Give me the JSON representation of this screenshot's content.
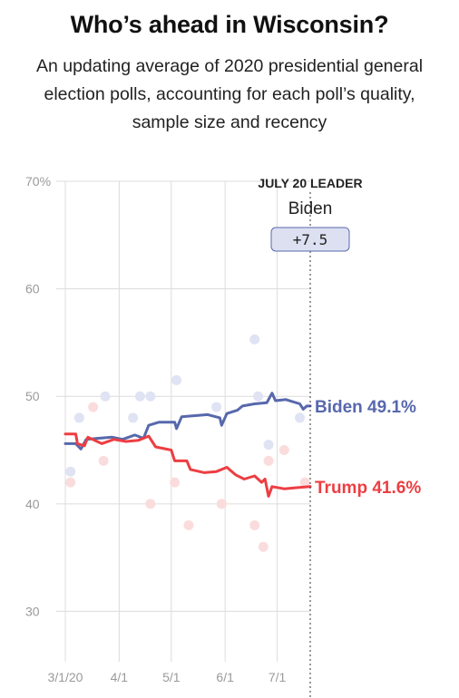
{
  "title": "Who’s ahead in Wisconsin?",
  "subtitle": "An updating average of 2020 presidential general election polls, accounting for each poll’s quality, sample size and recency",
  "leader": {
    "label": "JULY 20 LEADER",
    "name": "Biden",
    "margin": "+7.5"
  },
  "colors": {
    "biden": "#5768ac",
    "trump": "#ed3e42",
    "biden_poll": "#dfe3f3",
    "trump_poll": "#fbdcdd",
    "grid": "#dcdcdc",
    "tick": "#9a9a9a"
  },
  "chart_data": {
    "type": "line",
    "title": "Who’s ahead in Wisconsin?",
    "xlabel": "",
    "ylabel": "",
    "ylim": [
      27,
      70
    ],
    "y_ticks": [
      {
        "value": 70,
        "label": "70%"
      },
      {
        "value": 60,
        "label": "60"
      },
      {
        "value": 50,
        "label": "50"
      },
      {
        "value": 40,
        "label": "40"
      },
      {
        "value": 30,
        "label": "30"
      }
    ],
    "xlim": [
      "2020-03-01",
      "2020-07-20"
    ],
    "x_ticks": [
      {
        "value": "2020-03-01",
        "label": "3/1/20"
      },
      {
        "value": "2020-04-01",
        "label": "4/1"
      },
      {
        "value": "2020-05-01",
        "label": "5/1"
      },
      {
        "value": "2020-06-01",
        "label": "6/1"
      },
      {
        "value": "2020-07-01",
        "label": "7/1"
      }
    ],
    "grid": true,
    "series": [
      {
        "name": "Biden",
        "end_label": "Biden 49.1%",
        "color": "#5768ac",
        "points": [
          [
            "2020-03-01",
            45.6
          ],
          [
            "2020-03-07",
            45.6
          ],
          [
            "2020-03-10",
            45.1
          ],
          [
            "2020-03-13",
            46.0
          ],
          [
            "2020-03-20",
            46.1
          ],
          [
            "2020-03-28",
            46.2
          ],
          [
            "2020-04-03",
            46.0
          ],
          [
            "2020-04-10",
            46.4
          ],
          [
            "2020-04-15",
            46.1
          ],
          [
            "2020-04-18",
            47.3
          ],
          [
            "2020-04-24",
            47.6
          ],
          [
            "2020-05-03",
            47.6
          ],
          [
            "2020-05-04",
            47.0
          ],
          [
            "2020-05-07",
            48.1
          ],
          [
            "2020-05-14",
            48.2
          ],
          [
            "2020-05-22",
            48.3
          ],
          [
            "2020-05-29",
            48.0
          ],
          [
            "2020-05-30",
            47.3
          ],
          [
            "2020-06-02",
            48.4
          ],
          [
            "2020-06-08",
            48.7
          ],
          [
            "2020-06-11",
            49.1
          ],
          [
            "2020-06-18",
            49.3
          ],
          [
            "2020-06-25",
            49.4
          ],
          [
            "2020-06-28",
            50.3
          ],
          [
            "2020-06-30",
            49.6
          ],
          [
            "2020-07-06",
            49.7
          ],
          [
            "2020-07-14",
            49.3
          ],
          [
            "2020-07-16",
            48.8
          ],
          [
            "2020-07-18",
            49.1
          ],
          [
            "2020-07-20",
            49.1
          ]
        ]
      },
      {
        "name": "Trump",
        "end_label": "Trump 41.6%",
        "color": "#ed3e42",
        "points": [
          [
            "2020-03-01",
            46.5
          ],
          [
            "2020-03-07",
            46.5
          ],
          [
            "2020-03-08",
            45.6
          ],
          [
            "2020-03-12",
            45.4
          ],
          [
            "2020-03-14",
            46.2
          ],
          [
            "2020-03-22",
            45.6
          ],
          [
            "2020-03-29",
            46.0
          ],
          [
            "2020-04-05",
            45.8
          ],
          [
            "2020-04-12",
            45.9
          ],
          [
            "2020-04-18",
            46.3
          ],
          [
            "2020-04-22",
            45.3
          ],
          [
            "2020-05-01",
            45.0
          ],
          [
            "2020-05-03",
            44.0
          ],
          [
            "2020-05-10",
            44.0
          ],
          [
            "2020-05-12",
            43.2
          ],
          [
            "2020-05-20",
            42.9
          ],
          [
            "2020-05-27",
            43.0
          ],
          [
            "2020-06-02",
            43.4
          ],
          [
            "2020-06-07",
            42.7
          ],
          [
            "2020-06-12",
            42.3
          ],
          [
            "2020-06-18",
            42.6
          ],
          [
            "2020-06-22",
            42.0
          ],
          [
            "2020-06-24",
            42.3
          ],
          [
            "2020-06-26",
            40.7
          ],
          [
            "2020-06-28",
            41.6
          ],
          [
            "2020-07-05",
            41.4
          ],
          [
            "2020-07-12",
            41.5
          ],
          [
            "2020-07-20",
            41.6
          ]
        ]
      }
    ],
    "polls": [
      {
        "candidate": "Biden",
        "date": "2020-03-04",
        "value": 43.0
      },
      {
        "candidate": "Biden",
        "date": "2020-03-09",
        "value": 48.0
      },
      {
        "candidate": "Biden",
        "date": "2020-03-24",
        "value": 50.0
      },
      {
        "candidate": "Biden",
        "date": "2020-04-09",
        "value": 48.0
      },
      {
        "candidate": "Biden",
        "date": "2020-04-13",
        "value": 50.0
      },
      {
        "candidate": "Biden",
        "date": "2020-04-19",
        "value": 50.0
      },
      {
        "candidate": "Biden",
        "date": "2020-05-04",
        "value": 51.5
      },
      {
        "candidate": "Biden",
        "date": "2020-05-27",
        "value": 49.0
      },
      {
        "candidate": "Biden",
        "date": "2020-06-18",
        "value": 55.3
      },
      {
        "candidate": "Biden",
        "date": "2020-06-20",
        "value": 50.0
      },
      {
        "candidate": "Biden",
        "date": "2020-06-26",
        "value": 45.5
      },
      {
        "candidate": "Biden",
        "date": "2020-07-14",
        "value": 48.0
      },
      {
        "candidate": "Trump",
        "date": "2020-03-04",
        "value": 42.0
      },
      {
        "candidate": "Trump",
        "date": "2020-03-17",
        "value": 49.0
      },
      {
        "candidate": "Trump",
        "date": "2020-03-23",
        "value": 44.0
      },
      {
        "candidate": "Trump",
        "date": "2020-04-19",
        "value": 40.0
      },
      {
        "candidate": "Trump",
        "date": "2020-05-03",
        "value": 42.0
      },
      {
        "candidate": "Trump",
        "date": "2020-05-11",
        "value": 38.0
      },
      {
        "candidate": "Trump",
        "date": "2020-05-30",
        "value": 40.0
      },
      {
        "candidate": "Trump",
        "date": "2020-06-18",
        "value": 38.0
      },
      {
        "candidate": "Trump",
        "date": "2020-06-23",
        "value": 36.0
      },
      {
        "candidate": "Trump",
        "date": "2020-06-26",
        "value": 44.0
      },
      {
        "candidate": "Trump",
        "date": "2020-07-05",
        "value": 45.0
      },
      {
        "candidate": "Trump",
        "date": "2020-07-17",
        "value": 42.0
      }
    ]
  }
}
